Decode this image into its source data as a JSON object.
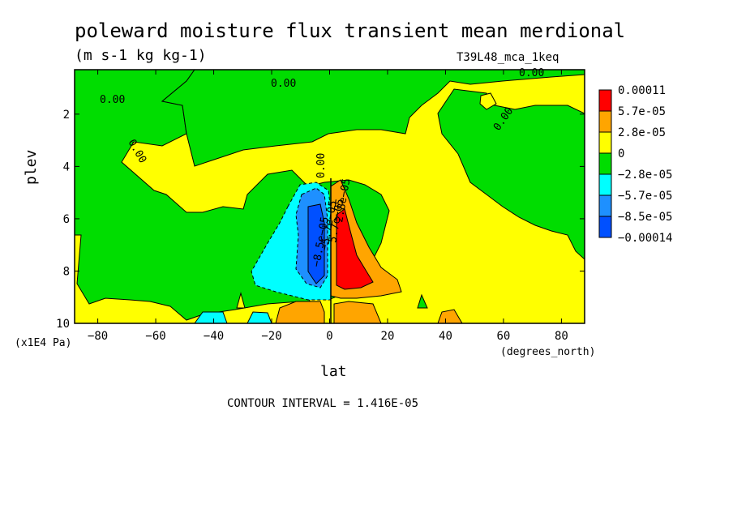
{
  "chart_data": {
    "type": "contour",
    "title": "poleward moisture flux transient mean merdional",
    "units": "(m s-1 kg kg-1)",
    "run_label": "T39L48_mca_1keq",
    "xlabel": "lat",
    "x_units": "(degrees_north)",
    "ylabel": "plev",
    "y_units": "(x1E4 Pa)",
    "contour_interval": "CONTOUR INTERVAL = 1.416E-05",
    "x_range": [
      -88,
      88
    ],
    "y_range": [
      10,
      0.3
    ],
    "x_ticks": [
      "-80",
      "-60",
      "-40",
      "-20",
      "0",
      "20",
      "40",
      "60",
      "80"
    ],
    "y_ticks": [
      "2",
      "4",
      "6",
      "8",
      "10"
    ],
    "legend": {
      "placement": "right",
      "labels": [
        "0.00011",
        "5.7e-05",
        "2.8e-05",
        "0",
        "−2.8e-05",
        "−5.7e-05",
        "−8.5e-05",
        "−0.00014"
      ],
      "colors": [
        "#ff0000",
        "#ffa500",
        "#ffa500",
        "#ffff00",
        "#00dd00",
        "#00ffff",
        "#1e90ff",
        "#0050ff"
      ]
    },
    "level_colors": {
      "high_pos": "#ff0000",
      "pos": "#ffa500",
      "near_zero_pos": "#ffff00",
      "near_zero_neg": "#00dd00",
      "neg": "#00ffff",
      "more_neg": "#1e90ff",
      "most_neg": "#0050ff"
    },
    "contour_labels": [
      "0.00",
      "0.00",
      "0.00",
      "0.00",
      "0.00",
      "0.00",
      "−5.7e−05",
      "−8.5e−05",
      "5.7e−05",
      "2.8e−05"
    ]
  }
}
